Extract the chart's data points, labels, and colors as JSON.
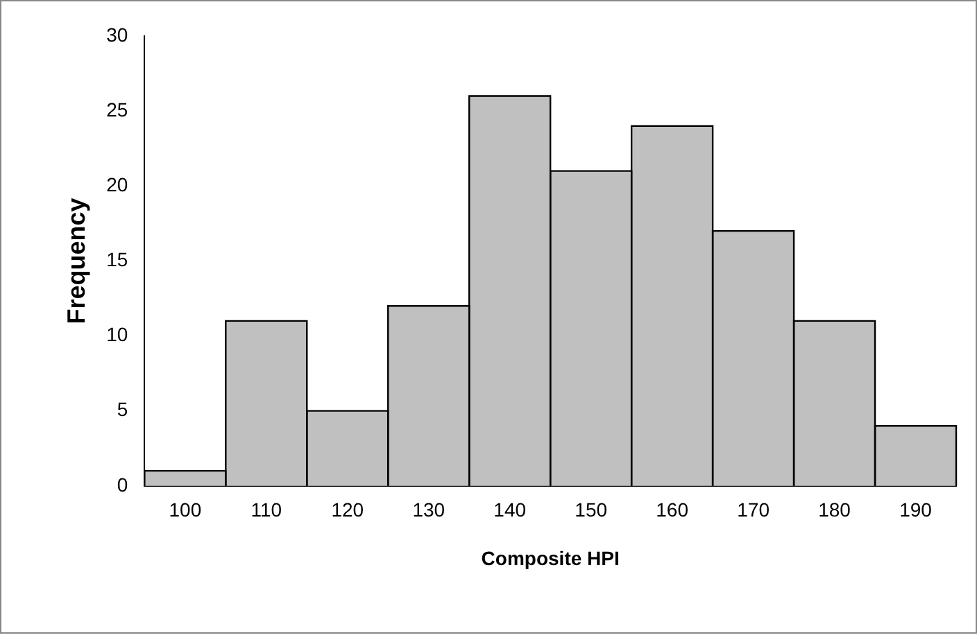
{
  "chart_data": {
    "type": "histogram",
    "xlabel": "Composite HPI",
    "ylabel": "Frequency",
    "bins": [
      95,
      105,
      115,
      125,
      135,
      145,
      155,
      165,
      175,
      185,
      195
    ],
    "values": [
      1,
      11,
      5,
      12,
      26,
      21,
      24,
      17,
      11,
      4
    ],
    "color": "#c0c0c0",
    "xlim": [
      95,
      195
    ],
    "xticks": [
      100,
      110,
      120,
      130,
      140,
      150,
      160,
      170,
      180,
      190
    ],
    "ylim": [
      0,
      30
    ],
    "yticks": [
      0,
      5,
      10,
      15,
      20,
      25,
      30
    ],
    "grid": false,
    "legend": false
  }
}
